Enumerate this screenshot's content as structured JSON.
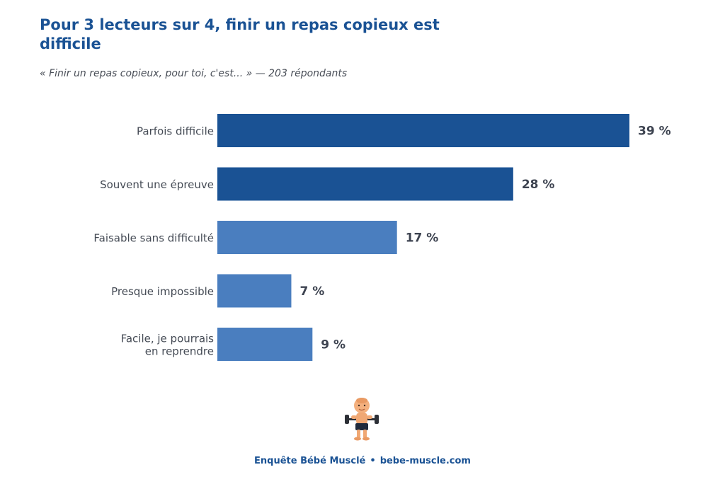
{
  "header": {
    "title": "Pour 3 lecteurs sur 4, finir un repas copieux est difficile",
    "subtitle": "« Finir un repas copieux, pour toi, c'est... » — 203 répondants"
  },
  "chart_data": {
    "type": "bar",
    "orientation": "horizontal",
    "title": "Pour 3 lecteurs sur 4, finir un repas copieux est difficile",
    "subtitle": "« Finir un repas copieux, pour toi, c'est... » — 203 répondants",
    "categories": [
      "Parfois difficile",
      "Souvent une épreuve",
      "Faisable sans difficulté",
      "Presque impossible",
      "Facile, je pourrais en reprendre"
    ],
    "values": [
      39,
      28,
      17,
      7,
      9
    ],
    "value_labels": [
      "39 %",
      "28 %",
      "17 %",
      "7 %",
      "9 %"
    ],
    "bar_colors": [
      "#1a5294",
      "#1a5294",
      "#4a7ebf",
      "#4a7ebf",
      "#4a7ebf"
    ],
    "xlim": [
      0,
      39
    ],
    "grid": false,
    "legend": "none"
  },
  "mascot": {
    "icon": "weightlifting-baby-icon"
  },
  "footer": {
    "source": "Enquête Bébé Musclé",
    "separator": "•",
    "site": "bebe-muscle.com"
  }
}
